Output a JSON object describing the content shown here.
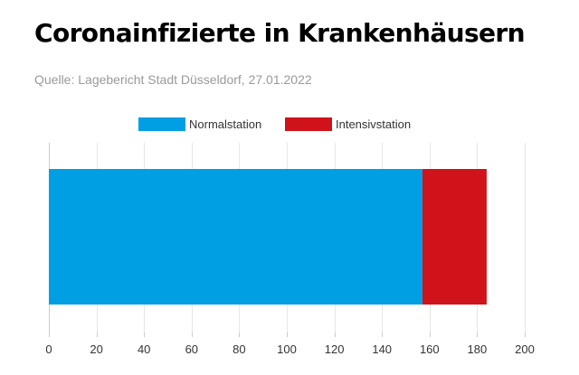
{
  "title": "Coronainfizierte in Krankenhäusern",
  "subtitle": "Quelle: Lagebericht Stadt Düsseldorf, 27.01.2022",
  "chart_data": {
    "type": "bar",
    "orientation": "horizontal",
    "stacked": true,
    "categories": [
      ""
    ],
    "series": [
      {
        "name": "Normalstation",
        "values": [
          157
        ],
        "color": "#009fe3"
      },
      {
        "name": "Intensivstation",
        "values": [
          27
        ],
        "color": "#d0121b"
      }
    ],
    "title": "Coronainfizierte in Krankenhäusern",
    "xlim": [
      0,
      200
    ],
    "xticks": [
      0,
      20,
      40,
      60,
      80,
      100,
      120,
      140,
      160,
      180,
      200
    ],
    "grid": true,
    "legend_position": "top-center"
  }
}
